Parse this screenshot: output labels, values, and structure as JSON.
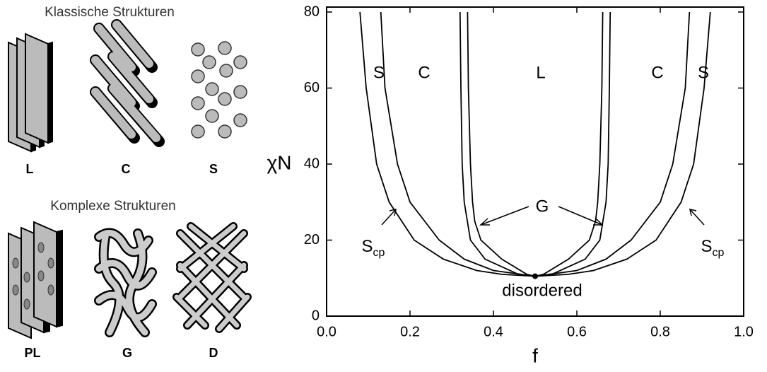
{
  "structures": {
    "classic_title": "Klassische Strukturen",
    "classic": [
      "L",
      "C",
      "S"
    ],
    "complex_title": "Komplexe Strukturen",
    "complex": [
      "PL",
      "G",
      "D"
    ]
  },
  "chart_data": {
    "type": "line",
    "xlabel": "f",
    "ylabel": "χN",
    "xlim": [
      0,
      1
    ],
    "ylim": [
      0,
      80
    ],
    "xticks": [
      {
        "value": 0,
        "label": "0.0"
      },
      0.2,
      0.4,
      0.6,
      0.8,
      {
        "value": 1,
        "label": "1.0"
      }
    ],
    "yticks": [
      0,
      20,
      40,
      60,
      80
    ],
    "color": "#000000",
    "series": [
      {
        "x": [
          0.5,
          0.42,
          0.36,
          0.28,
          0.21,
          0.15,
          0.12,
          0.095,
          0.08
        ],
        "values": [
          10.5,
          11,
          12,
          15,
          20,
          30,
          40,
          60,
          80
        ]
      },
      {
        "x": [
          0.5,
          0.58,
          0.64,
          0.72,
          0.79,
          0.85,
          0.88,
          0.905,
          0.92
        ],
        "values": [
          10.5,
          11,
          12,
          15,
          20,
          30,
          40,
          60,
          80
        ]
      },
      {
        "x": [
          0.5,
          0.4,
          0.33,
          0.27,
          0.2,
          0.17,
          0.14,
          0.13
        ],
        "values": [
          10.5,
          12,
          15,
          20,
          30,
          40,
          60,
          80
        ]
      },
      {
        "x": [
          0.5,
          0.6,
          0.67,
          0.73,
          0.8,
          0.83,
          0.86,
          0.87
        ],
        "values": [
          10.5,
          12,
          15,
          20,
          30,
          40,
          60,
          80
        ]
      },
      {
        "x": [
          0.5,
          0.46,
          0.38,
          0.345,
          0.33,
          0.325,
          0.322,
          0.32
        ],
        "values": [
          10.5,
          11,
          15,
          20,
          30,
          40,
          60,
          80
        ]
      },
      {
        "x": [
          0.5,
          0.54,
          0.62,
          0.655,
          0.67,
          0.675,
          0.678,
          0.68
        ],
        "values": [
          10.5,
          11,
          15,
          20,
          30,
          40,
          60,
          80
        ]
      },
      {
        "x": [
          0.5,
          0.48,
          0.42,
          0.37,
          0.355,
          0.35,
          0.345,
          0.34,
          0.338
        ],
        "values": [
          10.5,
          11,
          15,
          20,
          25,
          30,
          40,
          60,
          80
        ]
      },
      {
        "x": [
          0.5,
          0.52,
          0.58,
          0.63,
          0.645,
          0.65,
          0.655,
          0.66,
          0.662
        ],
        "values": [
          10.5,
          11,
          15,
          20,
          25,
          30,
          40,
          60,
          80
        ]
      }
    ],
    "critical_point": {
      "x": 0.5,
      "y": 10.5
    },
    "annotations": [
      "S",
      "C",
      "L",
      "C",
      "S",
      "G",
      {
        "text": "S",
        "sub": "cp"
      },
      {
        "text": "S",
        "sub": "cp"
      },
      "disordered"
    ]
  }
}
